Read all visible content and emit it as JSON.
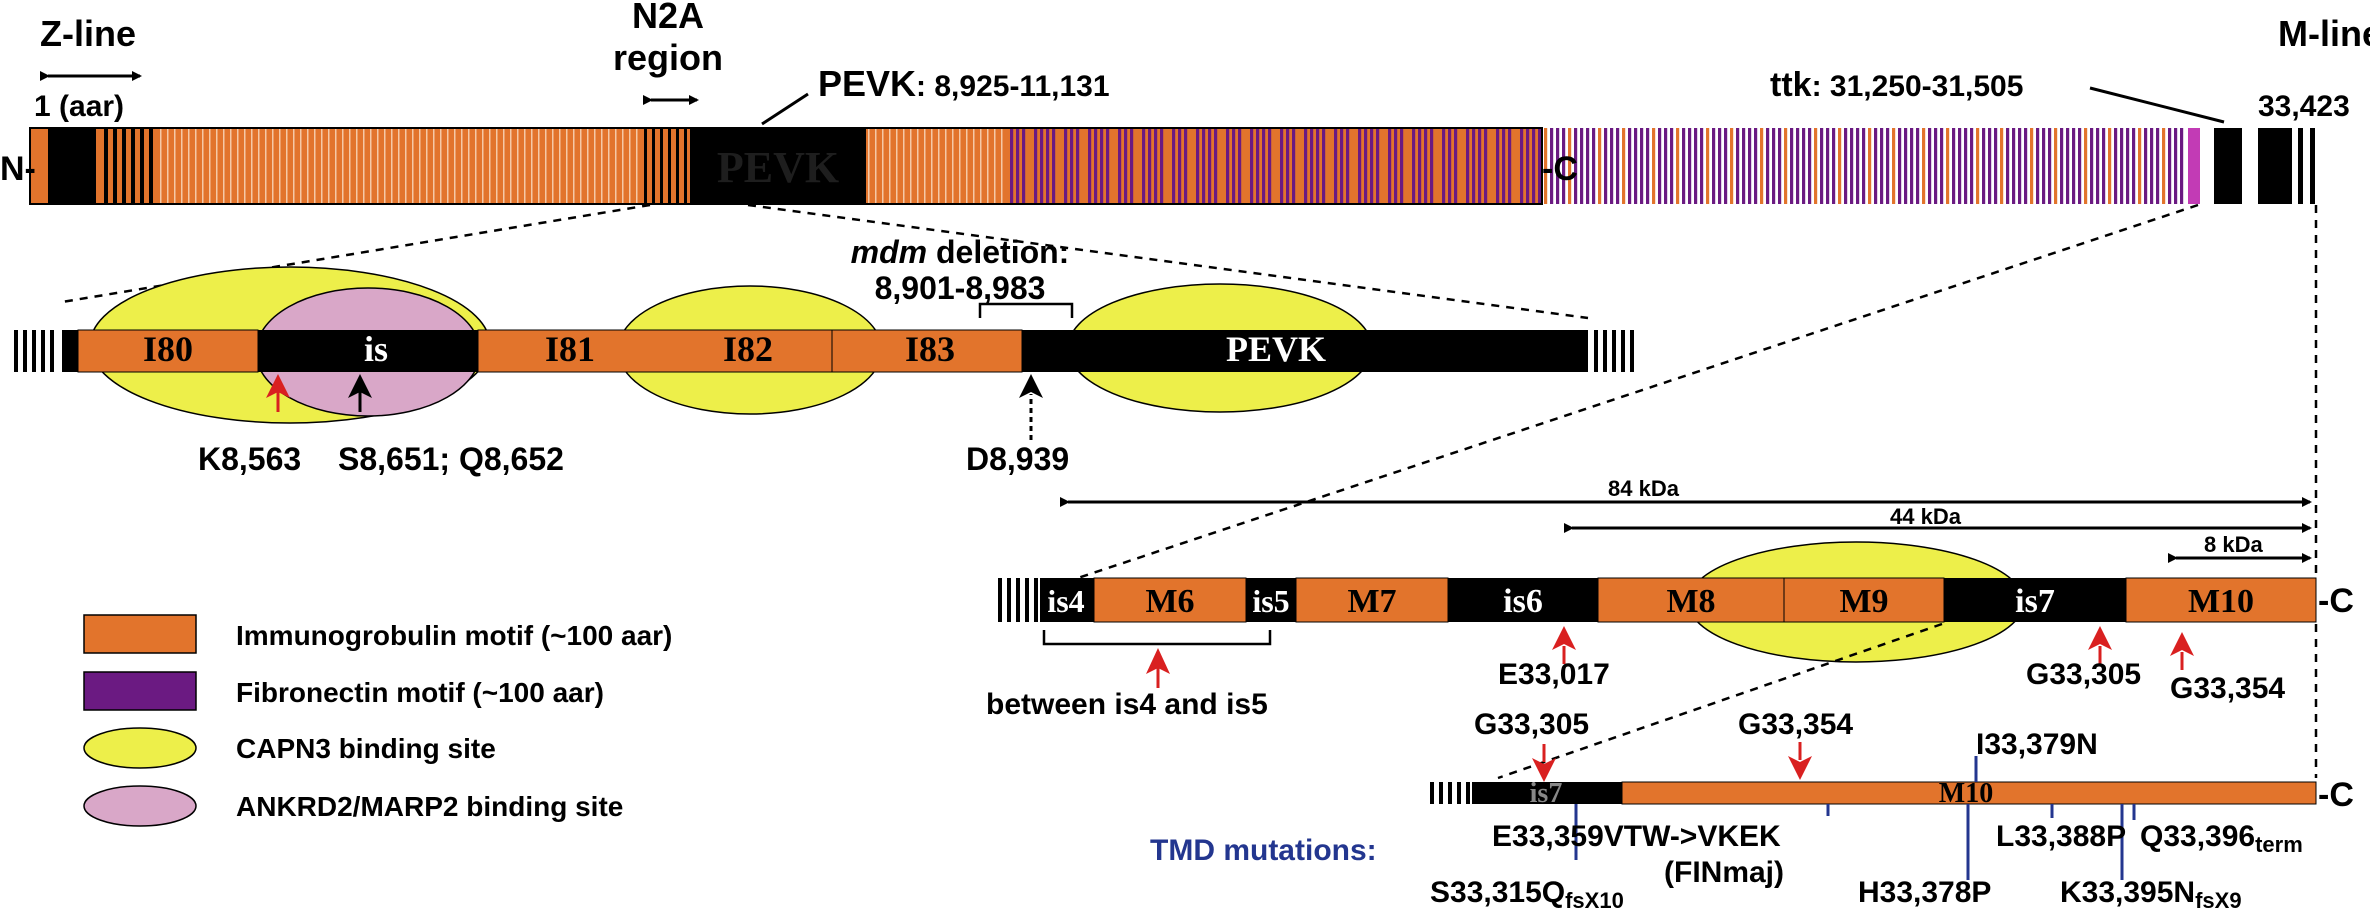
{
  "colors": {
    "ig": "#E2742C",
    "fn": "#6B1A82",
    "black": "#000000",
    "capn3": "#EDEF4A",
    "ankrd2": "#D9A7C8",
    "red": "#D92020",
    "navy": "#23368F",
    "pevk_text": "#1e1e1e"
  },
  "top_bar": {
    "n_label": "N-",
    "c_label": "-C",
    "zline": "Z-line",
    "aar": "1 (aar)",
    "n2a_line1": "N2A",
    "n2a_line2": "region",
    "pevk_name": "PEVK",
    "pevk_range": ": 8,925-11,131",
    "pevk_inner": "PEVK",
    "ttk_name": "ttk",
    "ttk_range": ": 31,250-31,505",
    "mline": "M-line",
    "end_num": "33,423"
  },
  "n2a_zoom": {
    "segments": [
      "I80",
      "is",
      "I81",
      "I82",
      "I83",
      "PEVK"
    ],
    "mdm_italic": "mdm",
    "mdm_deletion": " deletion:",
    "mdm_range": "8,901-8,983",
    "k_label": "K8,563",
    "s_label": "S8,651; Q8,652",
    "d_label": "D8,939"
  },
  "mline_zoom": {
    "segments": [
      "is4",
      "M6",
      "is5",
      "M7",
      "is6",
      "M8",
      "M9",
      "is7",
      "M10"
    ],
    "c_label": "-C",
    "kda84": "84 kDa",
    "kda44": "44 kDa",
    "kda8": "8 kDa",
    "between": "between is4 and is5",
    "e_label": "E33,017",
    "g305": "G33,305",
    "g354": "G33,354"
  },
  "tmd_zoom": {
    "is7": "is7",
    "m10": "M10",
    "c_label": "-C",
    "g305": "G33,305",
    "g354": "G33,354",
    "tmd_title": "TMD mutations:",
    "i379": "I33,379N",
    "e359": "E33,359VTW->VKEK",
    "finmaj": "(FINmaj)",
    "l388": "L33,388P",
    "q396": "Q33,396",
    "q396_sub": "term",
    "s315": "S33,315Q",
    "s315_sub": "fsX10",
    "h378": "H33,378P",
    "k395": "K33,395N",
    "k395_sub": "fsX9"
  },
  "legend": {
    "items": [
      "Immunogrobulin motif (~100 aar)",
      "Fibronectin motif (~100 aar)",
      "CAPN3 binding site",
      "ANKRD2/MARP2 binding site"
    ]
  }
}
